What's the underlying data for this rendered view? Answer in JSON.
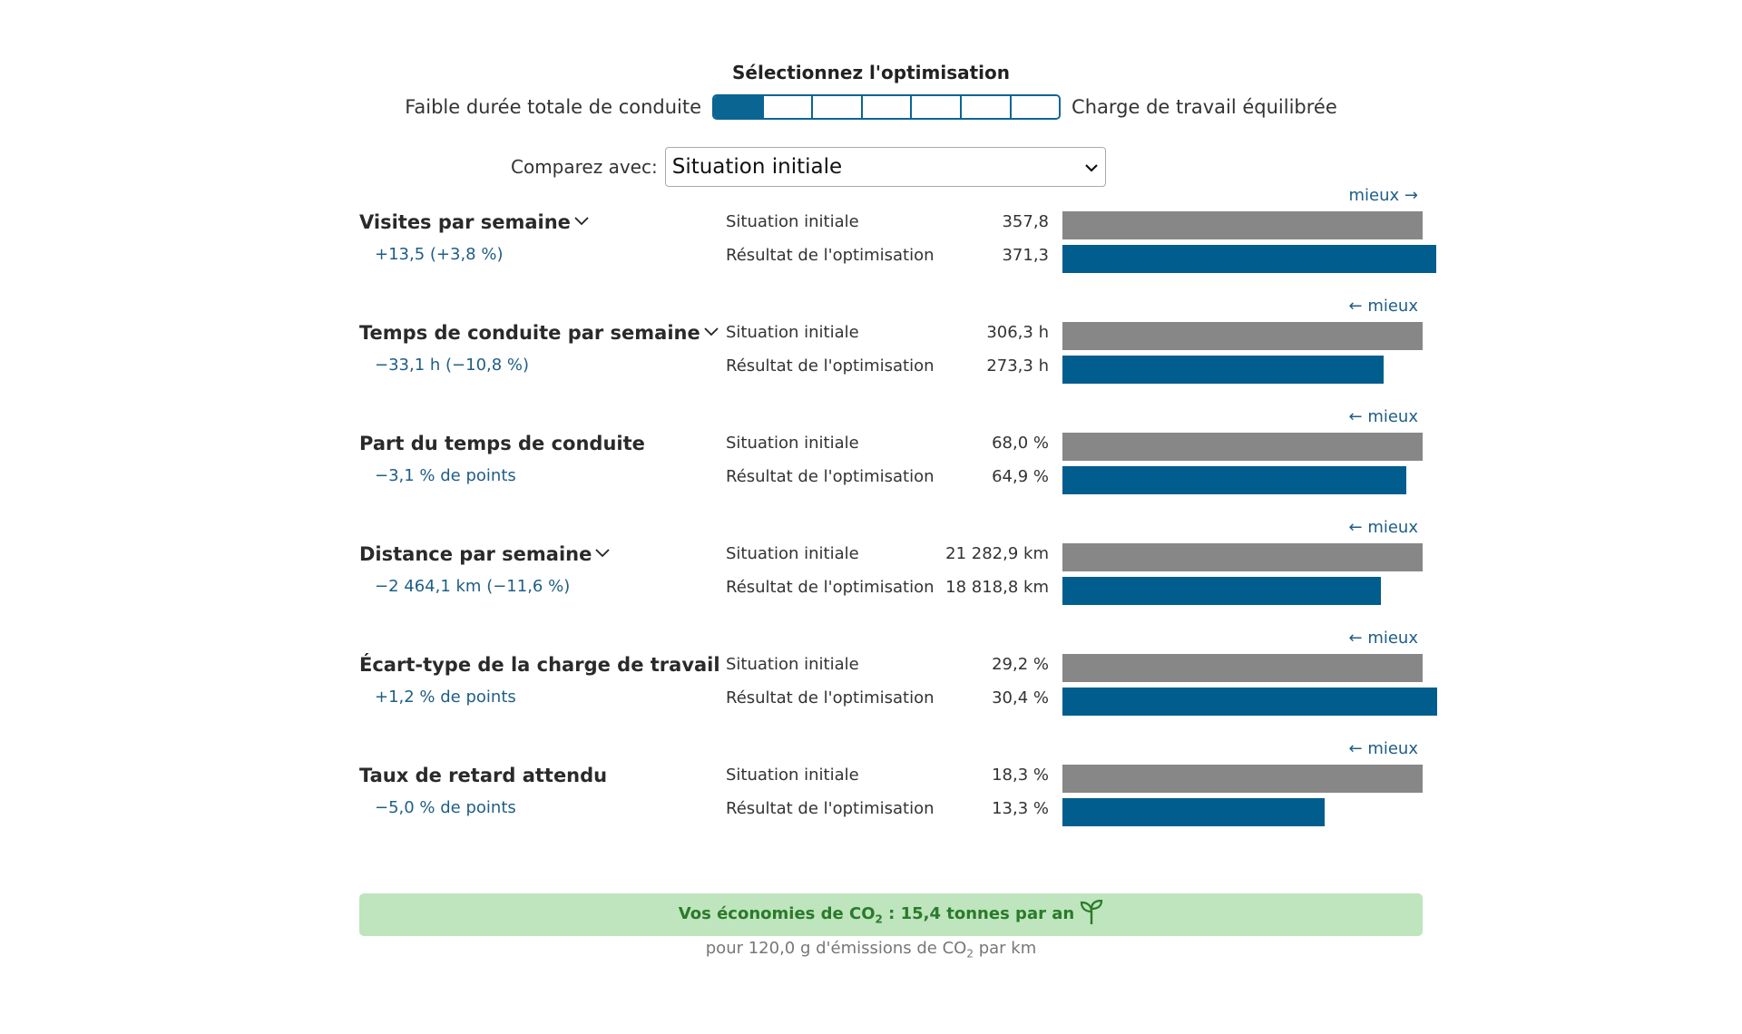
{
  "optimization": {
    "title": "Sélectionnez l'optimisation",
    "left_label": "Faible durée totale de conduite",
    "right_label": "Charge de travail équilibrée",
    "segments_total": 7,
    "selected_index": 0
  },
  "compare": {
    "label": "Comparez avec:",
    "selected": "Situation initiale"
  },
  "metrics": [
    {
      "title": "Visites par semaine",
      "has_dropdown": true,
      "change": "+13,5 (+3,8 %)",
      "better": "mieux →",
      "base_label": "Situation initiale",
      "base_value": "357,8",
      "opt_label": "Résultat de l'optimisation",
      "opt_value": "371,3",
      "base_num": 357.8,
      "opt_num": 371.3
    },
    {
      "title": "Temps de conduite par semaine",
      "has_dropdown": true,
      "change": "−33,1 h (−10,8 %)",
      "better": "← mieux",
      "base_label": "Situation initiale",
      "base_value": "306,3 h",
      "opt_label": "Résultat de l'optimisation",
      "opt_value": "273,3 h",
      "base_num": 306.3,
      "opt_num": 273.3
    },
    {
      "title": "Part du temps de conduite",
      "has_dropdown": false,
      "change": "−3,1 % de points",
      "better": "← mieux",
      "base_label": "Situation initiale",
      "base_value": "68,0 %",
      "opt_label": "Résultat de l'optimisation",
      "opt_value": "64,9 %",
      "base_num": 68.0,
      "opt_num": 64.9
    },
    {
      "title": "Distance par semaine",
      "has_dropdown": true,
      "change": "−2 464,1 km (−11,6 %)",
      "better": "← mieux",
      "base_label": "Situation initiale",
      "base_value": "21 282,9 km",
      "opt_label": "Résultat de l'optimisation",
      "opt_value": "18 818,8 km",
      "base_num": 21282.9,
      "opt_num": 18818.8
    },
    {
      "title": "Écart-type de la charge de travail",
      "has_dropdown": false,
      "change": "+1,2 % de points",
      "better": "← mieux",
      "base_label": "Situation initiale",
      "base_value": "29,2 %",
      "opt_label": "Résultat de l'optimisation",
      "opt_value": "30,4 %",
      "base_num": 29.2,
      "opt_num": 30.4
    },
    {
      "title": "Taux de retard attendu",
      "has_dropdown": false,
      "change": "−5,0 % de points",
      "better": "← mieux",
      "base_label": "Situation initiale",
      "base_value": "18,3 %",
      "opt_label": "Résultat de l'optimisation",
      "opt_value": "13,3 %",
      "base_num": 18.3,
      "opt_num": 13.3
    }
  ],
  "co2": {
    "savings_prefix": "Vos économies de CO",
    "savings_sub": "2",
    "savings_suffix": " : 15,4 tonnes par an",
    "note_prefix": "pour 120,0 g d'émissions de CO",
    "note_sub": "2",
    "note_suffix": " par km",
    "icon": "sprout-icon"
  },
  "colors": {
    "accent": "#0b6592",
    "bar_base": "#878787",
    "bar_opt": "#005d8e",
    "co2_bg": "#bee5bd",
    "co2_text": "#2b7a2a"
  }
}
